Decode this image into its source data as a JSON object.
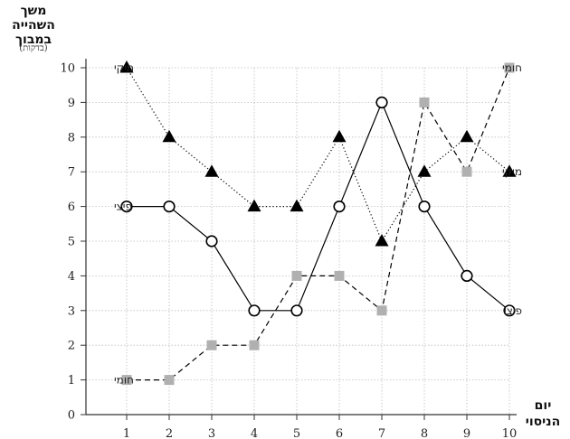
{
  "chart_data": {
    "type": "line",
    "ylabel_lines": [
      "משך השהייה",
      "במבוך"
    ],
    "ylabel_unit": "(בדקות)",
    "xlabel_lines": [
      "יום",
      "הניסוי"
    ],
    "x": [
      1,
      2,
      3,
      4,
      5,
      6,
      7,
      8,
      9,
      10
    ],
    "xlim": [
      1,
      10
    ],
    "ylim": [
      0,
      10
    ],
    "yticks": [
      0,
      1,
      2,
      3,
      4,
      5,
      6,
      7,
      8,
      9,
      10
    ],
    "grid": true,
    "series": [
      {
        "name": "מיקי",
        "marker": "triangle",
        "line_style": "dotted",
        "color": "#000000",
        "values": [
          10,
          8,
          7,
          6,
          6,
          8,
          5,
          7,
          8,
          7
        ]
      },
      {
        "name": "פיצי",
        "marker": "circle",
        "line_style": "solid",
        "color": "#000000",
        "values": [
          6,
          6,
          5,
          3,
          3,
          6,
          9,
          6,
          4,
          3
        ]
      },
      {
        "name": "חומי",
        "marker": "square",
        "line_style": "dashed",
        "color": "#b0b0b0",
        "values": [
          1,
          1,
          2,
          2,
          4,
          4,
          3,
          9,
          7,
          10
        ]
      }
    ]
  }
}
